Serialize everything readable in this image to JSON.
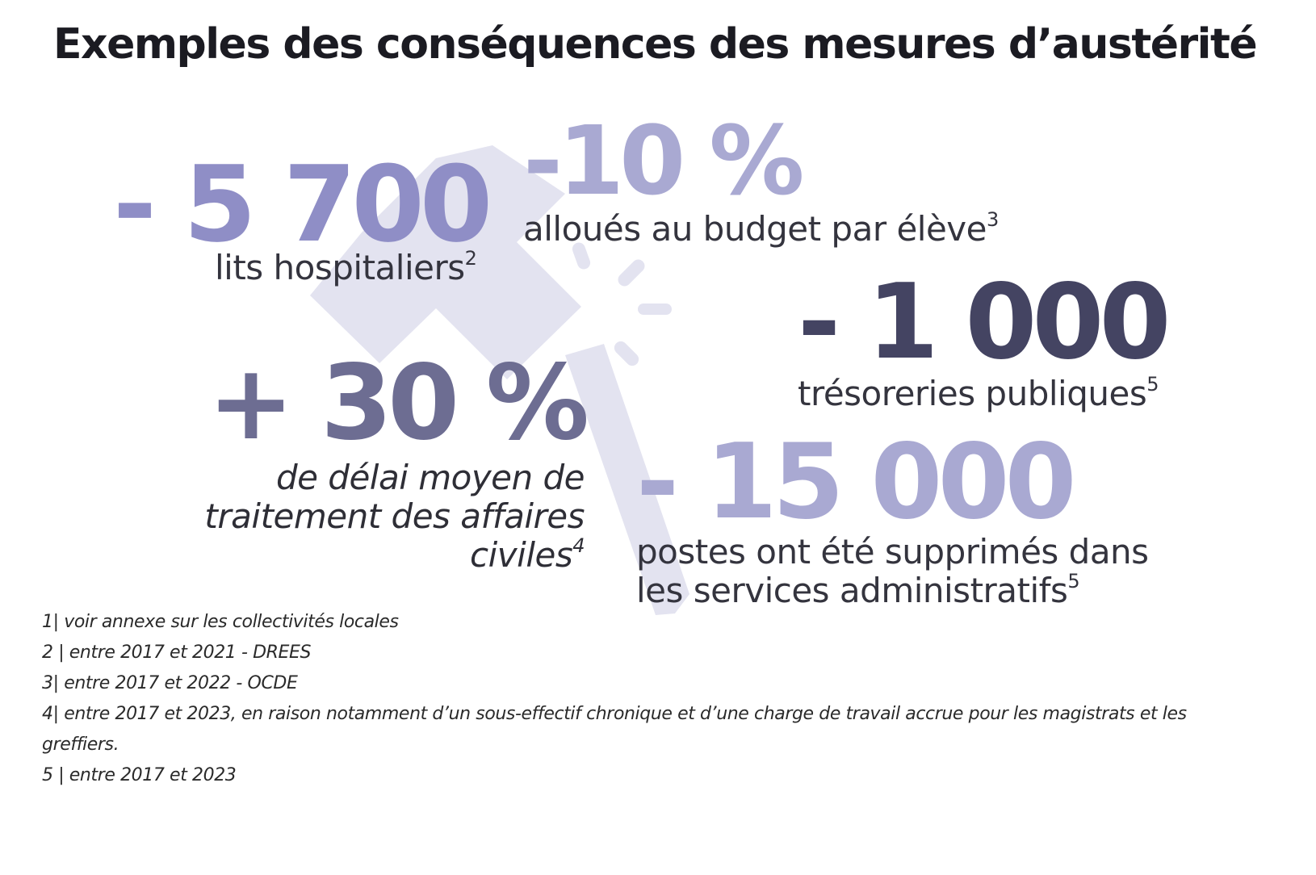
{
  "title": "Exemples des conséquences des mesures d’austérité",
  "colors": {
    "hammer": "#e3e3f0",
    "stat_light": "#a9a9d2",
    "stat_mid": "#8f8ec6",
    "stat_slate": "#6d6d92",
    "stat_dark": "#444462"
  },
  "stats": [
    {
      "value": "- 5 700",
      "label": "lits hospitaliers",
      "note": "2"
    },
    {
      "value": "-10 %",
      "label": "alloués au budget par élève",
      "note": "3"
    },
    {
      "value": "- 1 000",
      "label": "trésoreries publiques",
      "note": "5"
    },
    {
      "value": "+ 30 %",
      "label_lines": [
        "de délai moyen de",
        "traitement des affaires",
        "civiles"
      ],
      "note": "4"
    },
    {
      "value": "- 15 000",
      "label_lines": [
        "postes ont été supprimés dans",
        "les services administratifs"
      ],
      "note": "5"
    }
  ],
  "footnotes": [
    "1| voir annexe sur les collectivités locales",
    "2 | entre 2017 et 2021 - DREES",
    "3| entre 2017 et 2022 - OCDE",
    "4| entre 2017 et 2023, en raison notamment d’un sous-effectif chronique et d’une charge de travail accrue pour les magistrats et les greffiers.",
    "5 | entre 2017 et 2023"
  ],
  "icons": [
    "hammer-icon"
  ]
}
